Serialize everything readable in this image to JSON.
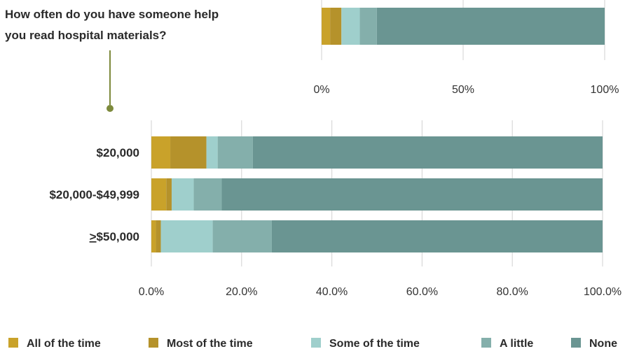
{
  "chart_data": [
    {
      "type": "bar",
      "orientation": "horizontal",
      "stacked": true,
      "title": "How often do you have someone help you read hospital materials?",
      "title_lines": [
        "How often do you have someone help",
        "you read hospital materials?"
      ],
      "categories": [
        ""
      ],
      "series": [
        {
          "name": "All of the time",
          "values": [
            3
          ]
        },
        {
          "name": "Most of the time",
          "values": [
            4
          ]
        },
        {
          "name": "Some of the time",
          "values": [
            6.5
          ]
        },
        {
          "name": "A little",
          "values": [
            6
          ]
        },
        {
          "name": "None",
          "values": [
            80.5
          ]
        }
      ],
      "xlim": [
        0,
        100
      ],
      "x_ticks": [
        "0%",
        "50%",
        "100%"
      ],
      "grid": true
    },
    {
      "type": "bar",
      "orientation": "horizontal",
      "stacked": true,
      "title": "",
      "categories": [
        "$20,000",
        "$20,000-$49,999",
        "≥$50,000"
      ],
      "category_display": [
        {
          "prefix": "",
          "rest": "$20,000"
        },
        {
          "prefix": "",
          "rest": "$20,000-$49,999"
        },
        {
          "prefix": ">",
          "rest": "$50,000"
        }
      ],
      "series": [
        {
          "name": "All of the time",
          "values": [
            4.2,
            3.3,
            1.0
          ]
        },
        {
          "name": "Most of the time",
          "values": [
            8.0,
            1.2,
            1.1
          ]
        },
        {
          "name": "Some of the time",
          "values": [
            2.5,
            4.9,
            11.5
          ]
        },
        {
          "name": "A little",
          "values": [
            7.8,
            6.2,
            13.1
          ]
        },
        {
          "name": "None",
          "values": [
            77.5,
            84.4,
            73.3
          ]
        }
      ],
      "xlim": [
        0,
        100
      ],
      "x_ticks": [
        "0.0%",
        "20.0%",
        "40.0%",
        "60.0%",
        "80.0%",
        "100.0%"
      ],
      "grid": true
    }
  ],
  "legend": [
    {
      "name": "All of the time",
      "color": "#c9a22a"
    },
    {
      "name": "Most of the time",
      "color": "#b5922b"
    },
    {
      "name": "Some of the time",
      "color": "#9fcfcc"
    },
    {
      "name": "A little",
      "color": "#84afab"
    },
    {
      "name": "None",
      "color": "#6a9592"
    }
  ],
  "colors": {
    "grid": "#d8d8d8",
    "connector": "#7d8a3c"
  }
}
